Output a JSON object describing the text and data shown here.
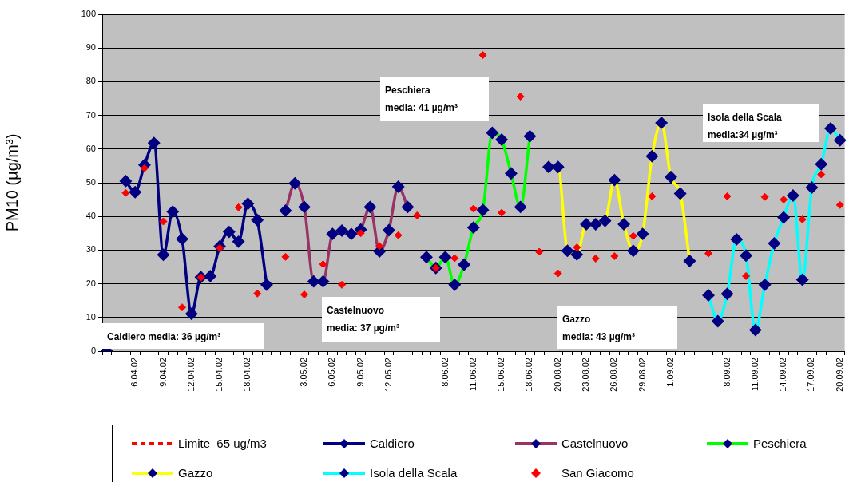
{
  "chart_data": {
    "type": "line",
    "ylabel": "PM10 (µg/m³)",
    "ylim": [
      0,
      100
    ],
    "yticks": [
      0,
      10,
      20,
      30,
      40,
      50,
      60,
      70,
      80,
      90,
      100
    ],
    "grid": "y",
    "legend": "bottom",
    "categories": [
      null,
      null,
      null,
      "6.04.02",
      null,
      null,
      "9.04.02",
      null,
      null,
      "12.04.02",
      null,
      null,
      "15.04.02",
      null,
      null,
      "18.04.02",
      null,
      null,
      null,
      null,
      null,
      "3.05.02",
      null,
      null,
      "6.05.02",
      null,
      null,
      "9.05.02",
      null,
      null,
      "12.05.02",
      null,
      null,
      null,
      null,
      null,
      "8.06.02",
      null,
      null,
      "11.06.02",
      null,
      null,
      "15.06.02",
      null,
      null,
      "18.06.02",
      null,
      null,
      "20.08.02",
      null,
      null,
      "23.08.02",
      null,
      null,
      "26.08.02",
      null,
      null,
      "29.08.02",
      null,
      null,
      "1.09.02",
      null,
      null,
      null,
      null,
      null,
      "8.09.02",
      null,
      null,
      "11.09.02",
      null,
      null,
      "14.09.02",
      null,
      null,
      "17.09.02",
      null,
      null,
      "20.09.02"
    ],
    "annotations": [
      "Caldiero media: 36 µg/m³",
      "Castelnuovo\nmedia: 37 µg/m³",
      "Peschiera\nmedia: 41 µg/m³",
      "Gazzo\nmedia: 43 µg/m³",
      "Isola della Scala\nmedia:34 µg/m³"
    ],
    "series": [
      {
        "name": "Limite  65 ug/m3",
        "type": "line",
        "color": "#ff0000",
        "line_style": "dashed",
        "marker": "none",
        "values": [
          null,
          null,
          null,
          null,
          null,
          null,
          null,
          null,
          null,
          null,
          null,
          null,
          null,
          null,
          null,
          null,
          null,
          null,
          null,
          null,
          null,
          null,
          null,
          null,
          null,
          null,
          null,
          null,
          null,
          null,
          null,
          null,
          null,
          null,
          null,
          null,
          null,
          null,
          null,
          null,
          null,
          null,
          null,
          null,
          null,
          null,
          null,
          null,
          null,
          null,
          null,
          null,
          null,
          null,
          null,
          null,
          null,
          null,
          null,
          null,
          null,
          null,
          null,
          null,
          null,
          null,
          null,
          null,
          null,
          null,
          null,
          null,
          null,
          null,
          null,
          null,
          null,
          null,
          null
        ]
      },
      {
        "name": "Caldiero",
        "type": "line",
        "color": "#000080",
        "marker": "diamond",
        "values": [
          0,
          null,
          50.5,
          47.2,
          55.3,
          61.8,
          28.6,
          41.4,
          33.3,
          11.1,
          22.0,
          22.3,
          31.1,
          35.4,
          32.5,
          43.8,
          38.9,
          19.7,
          null,
          null,
          null,
          null,
          null,
          null,
          null,
          null,
          null,
          null,
          null,
          null,
          null,
          null,
          null,
          null,
          null,
          null,
          null,
          null,
          null,
          null,
          null,
          null,
          null,
          null,
          null,
          null,
          null,
          null,
          null,
          null,
          null,
          null,
          null,
          null,
          null,
          null,
          null,
          null,
          null,
          null,
          null,
          null,
          null,
          null,
          null,
          null,
          null,
          null,
          null,
          null,
          null,
          null,
          null,
          null,
          null,
          null,
          null,
          null,
          null
        ]
      },
      {
        "name": "Castelnuovo",
        "type": "line",
        "color": "#993366",
        "marker": "diamond",
        "values": [
          null,
          null,
          null,
          null,
          null,
          null,
          null,
          null,
          null,
          null,
          null,
          null,
          null,
          null,
          null,
          null,
          null,
          null,
          null,
          41.7,
          49.8,
          42.8,
          20.7,
          20.7,
          34.8,
          35.8,
          34.8,
          36.1,
          42.8,
          29.6,
          35.9,
          48.8,
          42.8,
          null,
          null,
          null,
          null,
          null,
          null,
          null,
          null,
          null,
          null,
          null,
          null,
          null,
          null,
          null,
          null,
          null,
          null,
          null,
          null,
          null,
          null,
          null,
          null,
          null,
          null,
          null,
          null,
          null,
          null,
          null,
          null,
          null,
          null,
          null,
          null,
          null,
          null,
          null,
          null,
          null,
          null,
          null,
          null,
          null,
          null
        ]
      },
      {
        "name": "Peschiera",
        "type": "line",
        "color": "#00ff00",
        "marker": "diamond",
        "values": [
          null,
          null,
          null,
          null,
          null,
          null,
          null,
          null,
          null,
          null,
          null,
          null,
          null,
          null,
          null,
          null,
          null,
          null,
          null,
          null,
          null,
          null,
          null,
          null,
          null,
          null,
          null,
          null,
          null,
          null,
          null,
          null,
          null,
          null,
          27.9,
          24.7,
          27.9,
          19.7,
          25.7,
          36.7,
          41.9,
          64.8,
          62.8,
          52.8,
          42.8,
          63.8,
          null,
          null,
          null,
          null,
          null,
          null,
          null,
          null,
          null,
          null,
          null,
          null,
          null,
          null,
          null,
          null,
          null,
          null,
          null,
          null,
          null,
          null,
          null,
          null,
          null,
          null,
          null,
          null,
          null,
          null,
          null,
          null,
          null
        ]
      },
      {
        "name": "Gazzo",
        "type": "line",
        "color": "#ffff00",
        "marker": "diamond",
        "values": [
          null,
          null,
          null,
          null,
          null,
          null,
          null,
          null,
          null,
          null,
          null,
          null,
          null,
          null,
          null,
          null,
          null,
          null,
          null,
          null,
          null,
          null,
          null,
          null,
          null,
          null,
          null,
          null,
          null,
          null,
          null,
          null,
          null,
          null,
          null,
          null,
          null,
          null,
          null,
          null,
          null,
          null,
          null,
          null,
          null,
          null,
          null,
          54.7,
          54.7,
          29.8,
          28.7,
          37.7,
          37.7,
          38.7,
          50.8,
          37.7,
          29.8,
          34.8,
          57.9,
          67.8,
          51.7,
          46.8,
          26.8,
          null,
          null,
          null,
          null,
          null,
          null,
          null,
          null,
          null,
          null,
          null,
          null,
          null,
          null,
          null,
          null
        ]
      },
      {
        "name": "Isola della Scala",
        "type": "line",
        "color": "#00ffff",
        "marker": "diamond",
        "values": [
          null,
          null,
          null,
          null,
          null,
          null,
          null,
          null,
          null,
          null,
          null,
          null,
          null,
          null,
          null,
          null,
          null,
          null,
          null,
          null,
          null,
          null,
          null,
          null,
          null,
          null,
          null,
          null,
          null,
          null,
          null,
          null,
          null,
          null,
          null,
          null,
          null,
          null,
          null,
          null,
          null,
          null,
          null,
          null,
          null,
          null,
          null,
          null,
          null,
          null,
          null,
          null,
          null,
          null,
          null,
          null,
          null,
          null,
          null,
          null,
          null,
          null,
          null,
          null,
          16.6,
          8.9,
          17.0,
          33.2,
          28.4,
          6.3,
          19.7,
          32.0,
          39.7,
          46.2,
          21.2,
          48.6,
          55.5,
          66.1,
          62.6
        ]
      },
      {
        "name": "San Giacomo",
        "type": "scatter",
        "color": "#ff0000",
        "marker": "diamond",
        "values": [
          null,
          null,
          47.0,
          null,
          54.3,
          null,
          38.5,
          null,
          13.0,
          null,
          21.9,
          null,
          30.6,
          null,
          42.7,
          null,
          17.1,
          null,
          null,
          28.0,
          null,
          16.8,
          null,
          25.8,
          null,
          19.7,
          null,
          35.0,
          null,
          31.2,
          null,
          34.4,
          null,
          40.3,
          null,
          24.7,
          null,
          27.6,
          null,
          42.3,
          87.9,
          null,
          41.1,
          null,
          75.6,
          null,
          29.5,
          null,
          23.1,
          null,
          30.8,
          null,
          27.5,
          null,
          28.2,
          null,
          34.2,
          null,
          46.0,
          null,
          null,
          null,
          null,
          null,
          29.0,
          null,
          46.0,
          null,
          22.3,
          null,
          45.8,
          null,
          45.0,
          null,
          39.1,
          null,
          52.5,
          null,
          43.4
        ]
      }
    ]
  }
}
